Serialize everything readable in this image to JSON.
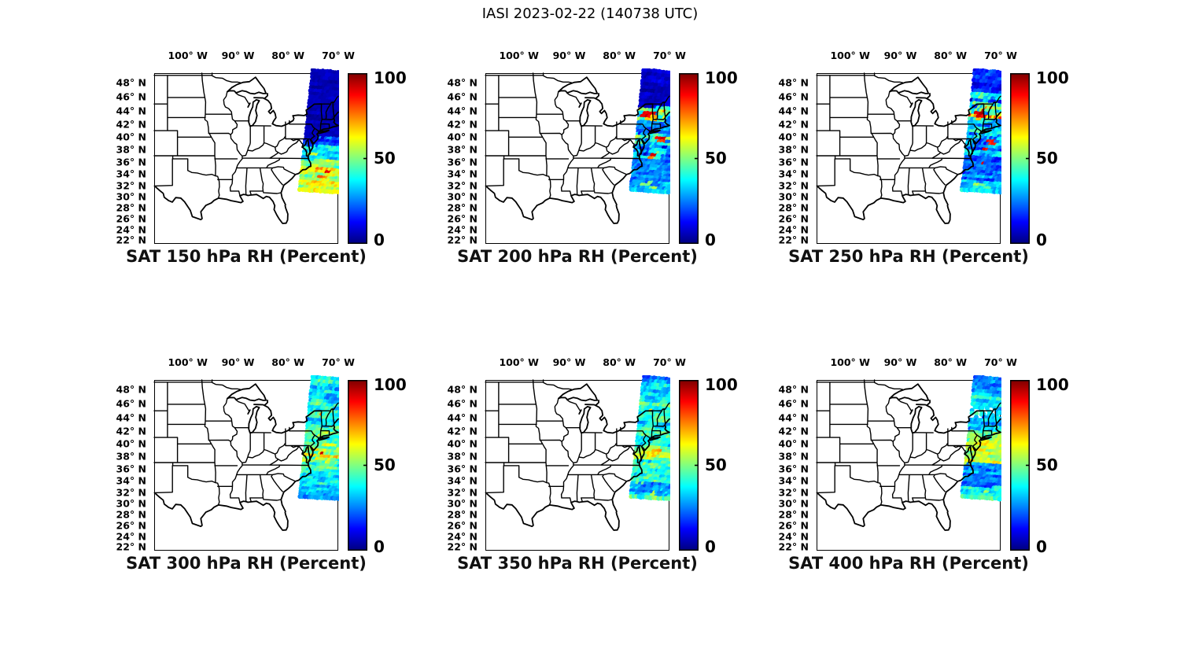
{
  "figure_title": "IASI 2023-02-22 (140738 UTC)",
  "lon_ticks": [
    {
      "value": -100,
      "label": "100° W"
    },
    {
      "value": -90,
      "label": "90° W"
    },
    {
      "value": -80,
      "label": "80° W"
    },
    {
      "value": -70,
      "label": "70° W"
    }
  ],
  "lat_ticks": [
    {
      "value": 48,
      "label": "48° N"
    },
    {
      "value": 46,
      "label": "46° N"
    },
    {
      "value": 44,
      "label": "44° N"
    },
    {
      "value": 42,
      "label": "42° N"
    },
    {
      "value": 40,
      "label": "40° N"
    },
    {
      "value": 38,
      "label": "38° N"
    },
    {
      "value": 36,
      "label": "36° N"
    },
    {
      "value": 34,
      "label": "34° N"
    },
    {
      "value": 32,
      "label": "32° N"
    },
    {
      "value": 30,
      "label": "30° N"
    },
    {
      "value": 28,
      "label": "28° N"
    },
    {
      "value": 26,
      "label": "26° N"
    },
    {
      "value": 24,
      "label": "24° N"
    },
    {
      "value": 22,
      "label": "22° N"
    }
  ],
  "colorbar": {
    "tick_labels": [
      "100",
      "50",
      "0"
    ],
    "min": 0,
    "max": 100,
    "colormap": "jet"
  },
  "chart_data": {
    "type": "scatter",
    "subtype": "satellite-swath-on-map",
    "layout": "2 rows x 3 columns",
    "instrument": "IASI",
    "timestamp_label": "2023-02-22 (140738 UTC)",
    "variable": "Relative Humidity",
    "units": "Percent",
    "colormap": "jet",
    "color_range": [
      0,
      100
    ],
    "map_extent": {
      "lon_range": [
        -106.7,
        -70.0
      ],
      "lat_range": [
        21.3,
        49.3
      ]
    },
    "swath_band_format": "[lat_max, lat_min, rh_mean_percent, rh_spread, density(optional)]",
    "accent_format": "[lat_center, lon_offset_from_swath_center, lon_length_deg, rh_value]",
    "panels": [
      {
        "title": "SAT 150 hPa RH (Percent)",
        "level_hPa": 150,
        "swath_rh_bands": [
          [
            49.5,
            39.8,
            5,
            3
          ],
          [
            39.8,
            38.5,
            18,
            10
          ],
          [
            38.5,
            36.2,
            35,
            10
          ],
          [
            36.2,
            34.8,
            52,
            12
          ],
          [
            34.8,
            32.8,
            60,
            14
          ],
          [
            32.8,
            30.8,
            58,
            12
          ]
        ],
        "accents": [
          [
            37.2,
            -2.0,
            2.0,
            55
          ],
          [
            34.2,
            1.2,
            1.2,
            85
          ],
          [
            33.4,
            0.5,
            1.8,
            75
          ],
          [
            32.4,
            -0.8,
            2.2,
            68
          ],
          [
            35.1,
            -1.5,
            2.0,
            62
          ],
          [
            31.6,
            0.2,
            2.5,
            60
          ]
        ]
      },
      {
        "title": "SAT 200 hPa RH (Percent)",
        "level_hPa": 200,
        "swath_rh_bands": [
          [
            49.5,
            44.5,
            7,
            5
          ],
          [
            44.5,
            42.5,
            45,
            30
          ],
          [
            42.5,
            40.5,
            22,
            12
          ],
          [
            40.5,
            38.5,
            35,
            18
          ],
          [
            38.5,
            36.5,
            35,
            22
          ],
          [
            36.5,
            34.5,
            28,
            10
          ],
          [
            34.5,
            32.5,
            26,
            10
          ],
          [
            32.5,
            30.8,
            32,
            12
          ]
        ],
        "accents": [
          [
            43.4,
            -1.9,
            3.0,
            92
          ],
          [
            42.9,
            -1.4,
            2.6,
            68
          ],
          [
            44.0,
            -1.9,
            2.0,
            50
          ],
          [
            39.9,
            0.8,
            2.0,
            90
          ],
          [
            39.2,
            1.3,
            1.6,
            82
          ],
          [
            36.9,
            -0.1,
            1.4,
            92
          ],
          [
            36.4,
            -0.5,
            1.2,
            78
          ],
          [
            32.2,
            -0.8,
            2.4,
            48
          ],
          [
            31.6,
            0.6,
            1.8,
            52
          ]
        ]
      },
      {
        "title": "SAT 250 hPa RH (Percent)",
        "level_hPa": 250,
        "swath_rh_bands": [
          [
            49.5,
            46.5,
            15,
            10
          ],
          [
            46.5,
            44.5,
            35,
            22
          ],
          [
            44.5,
            42.5,
            55,
            30
          ],
          [
            42.5,
            40.5,
            30,
            14
          ],
          [
            40.5,
            38.5,
            35,
            20
          ],
          [
            38.5,
            36.5,
            28,
            14
          ],
          [
            36.5,
            34.0,
            22,
            10
          ],
          [
            34.0,
            32.0,
            26,
            12
          ],
          [
            32.0,
            30.8,
            35,
            14
          ]
        ],
        "accents": [
          [
            43.8,
            -2.0,
            2.0,
            95
          ],
          [
            43.3,
            -1.6,
            2.2,
            88
          ],
          [
            42.8,
            -2.1,
            1.4,
            72
          ],
          [
            39.4,
            0.6,
            1.6,
            86
          ],
          [
            38.7,
            1.1,
            1.4,
            84
          ],
          [
            38.1,
            -0.2,
            1.0,
            88
          ],
          [
            35.8,
            -0.4,
            0.45,
            93
          ],
          [
            32.0,
            -0.7,
            1.8,
            52
          ],
          [
            31.5,
            0.9,
            1.4,
            48
          ]
        ]
      },
      {
        "title": "SAT 300 hPa RH (Percent)",
        "level_hPa": 300,
        "swath_rh_bands": [
          [
            49.5,
            46.5,
            38,
            14
          ],
          [
            46.5,
            44.5,
            42,
            16
          ],
          [
            44.5,
            42.5,
            35,
            12
          ],
          [
            42.5,
            40.0,
            42,
            14
          ],
          [
            40.0,
            38.5,
            48,
            16
          ],
          [
            38.5,
            37.0,
            52,
            16
          ],
          [
            37.0,
            35.0,
            42,
            14
          ],
          [
            35.0,
            33.0,
            36,
            12
          ],
          [
            33.0,
            30.8,
            30,
            10
          ]
        ],
        "accents": [
          [
            44.6,
            -1.4,
            0.5,
            74
          ],
          [
            44.3,
            -2.1,
            0.4,
            68
          ],
          [
            38.4,
            -0.4,
            0.5,
            96
          ],
          [
            38.0,
            0.4,
            2.0,
            66
          ],
          [
            37.4,
            -0.9,
            1.8,
            62
          ],
          [
            36.8,
            0.9,
            1.4,
            60
          ]
        ]
      },
      {
        "title": "SAT 350 hPa RH (Percent)",
        "level_hPa": 350,
        "swath_rh_bands": [
          [
            49.5,
            47.5,
            28,
            14
          ],
          [
            47.5,
            45.5,
            40,
            14
          ],
          [
            45.5,
            43.5,
            38,
            12
          ],
          [
            43.5,
            41.5,
            40,
            12
          ],
          [
            41.5,
            39.5,
            44,
            14
          ],
          [
            39.5,
            37.5,
            55,
            12
          ],
          [
            37.5,
            35.5,
            46,
            14
          ],
          [
            35.5,
            33.5,
            42,
            14
          ],
          [
            33.5,
            31.8,
            28,
            12
          ],
          [
            31.8,
            30.8,
            40,
            14
          ]
        ],
        "accents": [
          [
            38.7,
            0.4,
            2.0,
            70
          ],
          [
            38.1,
            -0.7,
            1.6,
            66
          ],
          [
            31.7,
            0.3,
            1.0,
            56
          ],
          [
            44.9,
            -1.9,
            0.5,
            60
          ]
        ]
      },
      {
        "title": "SAT 400 hPa RH (Percent)",
        "level_hPa": 400,
        "swath_rh_bands": [
          [
            49.5,
            47.5,
            28,
            10
          ],
          [
            47.5,
            45.5,
            38,
            10
          ],
          [
            45.5,
            44.0,
            32,
            14,
            0.35
          ],
          [
            44.0,
            42.0,
            32,
            12
          ],
          [
            42.0,
            40.5,
            45,
            12
          ],
          [
            40.5,
            36.8,
            58,
            10
          ],
          [
            36.8,
            34.5,
            28,
            12
          ],
          [
            34.5,
            32.8,
            22,
            8
          ],
          [
            32.8,
            30.8,
            38,
            12
          ]
        ],
        "accents": [
          [
            39.1,
            -0.4,
            2.6,
            64
          ],
          [
            38.3,
            0.6,
            2.4,
            62
          ],
          [
            37.3,
            -1.1,
            1.8,
            60
          ],
          [
            31.9,
            1.0,
            1.2,
            52
          ]
        ]
      }
    ]
  }
}
